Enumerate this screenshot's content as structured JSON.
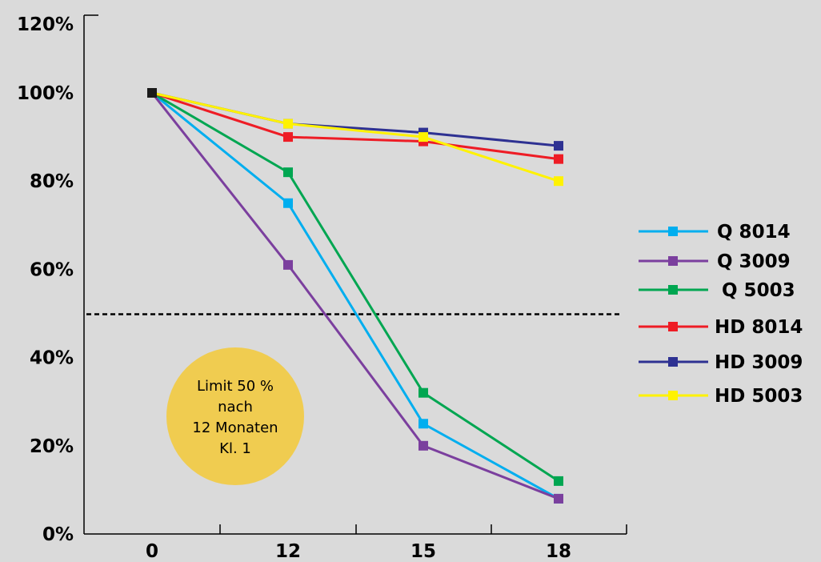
{
  "chart_data": {
    "type": "line",
    "x": [
      "0",
      "12",
      "15",
      "18"
    ],
    "y_ticks": [
      "0%",
      "20%",
      "40%",
      "60%",
      "80%",
      "100%",
      "120%"
    ],
    "ylim": [
      0,
      120
    ],
    "series": [
      {
        "name": "Q 8014",
        "color": "#00aeef",
        "values": [
          100,
          75,
          25,
          8
        ]
      },
      {
        "name": "Q 3009",
        "color": "#7b3f9e",
        "values": [
          100,
          61,
          20,
          8
        ]
      },
      {
        "name": "Q 5003",
        "color": "#00a651",
        "values": [
          100,
          82,
          32,
          12
        ]
      },
      {
        "name": "HD 8014",
        "color": "#ee1c25",
        "values": [
          100,
          90,
          89,
          85
        ]
      },
      {
        "name": "HD 3009",
        "color": "#2e3192",
        "values": [
          100,
          93,
          91,
          88
        ]
      },
      {
        "name": "HD 5003",
        "color": "#fff200",
        "values": [
          100,
          93,
          90,
          80
        ]
      }
    ],
    "start_marker_color": "#1a1a1a",
    "reference_line": {
      "value": 50,
      "style": "dashed",
      "color": "#000000"
    },
    "annotation": {
      "lines": [
        "Limit 50 %",
        "nach",
        "12 Monaten",
        "Kl. 1"
      ],
      "fill": "#f0cc50"
    },
    "legend_position": "right",
    "grid": false
  }
}
